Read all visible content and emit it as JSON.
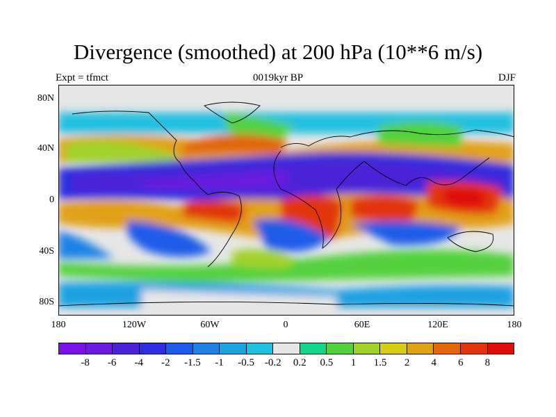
{
  "title": "Divergence (smoothed) at 200 hPa (10**6 m/s)",
  "subtitle_left": "Expt = tfmct",
  "subtitle_center": "0019kyr BP",
  "subtitle_right": "DJF",
  "lat_labels": [
    "80N",
    "40N",
    "0",
    "40S",
    "80S"
  ],
  "lon_labels": [
    "180",
    "120W",
    "60W",
    "0",
    "60E",
    "120E",
    "180"
  ],
  "colorbar": {
    "colors": [
      "#7a12e6",
      "#6a1de0",
      "#4b22d6",
      "#2c2ee0",
      "#1a5ce8",
      "#1e82e6",
      "#1fa2e2",
      "#20c0e2",
      "#e6e6e6",
      "#12d68c",
      "#52d23c",
      "#a0d22a",
      "#d8cc14",
      "#e2a014",
      "#e2660c",
      "#e2340c",
      "#e00c0c"
    ],
    "labels": [
      "-8",
      "-6",
      "-4",
      "-2",
      "-1.5",
      "-1",
      "-0.5",
      "-0.2",
      "0.2",
      "0.5",
      "1",
      "1.5",
      "2",
      "4",
      "6",
      "8"
    ]
  }
}
